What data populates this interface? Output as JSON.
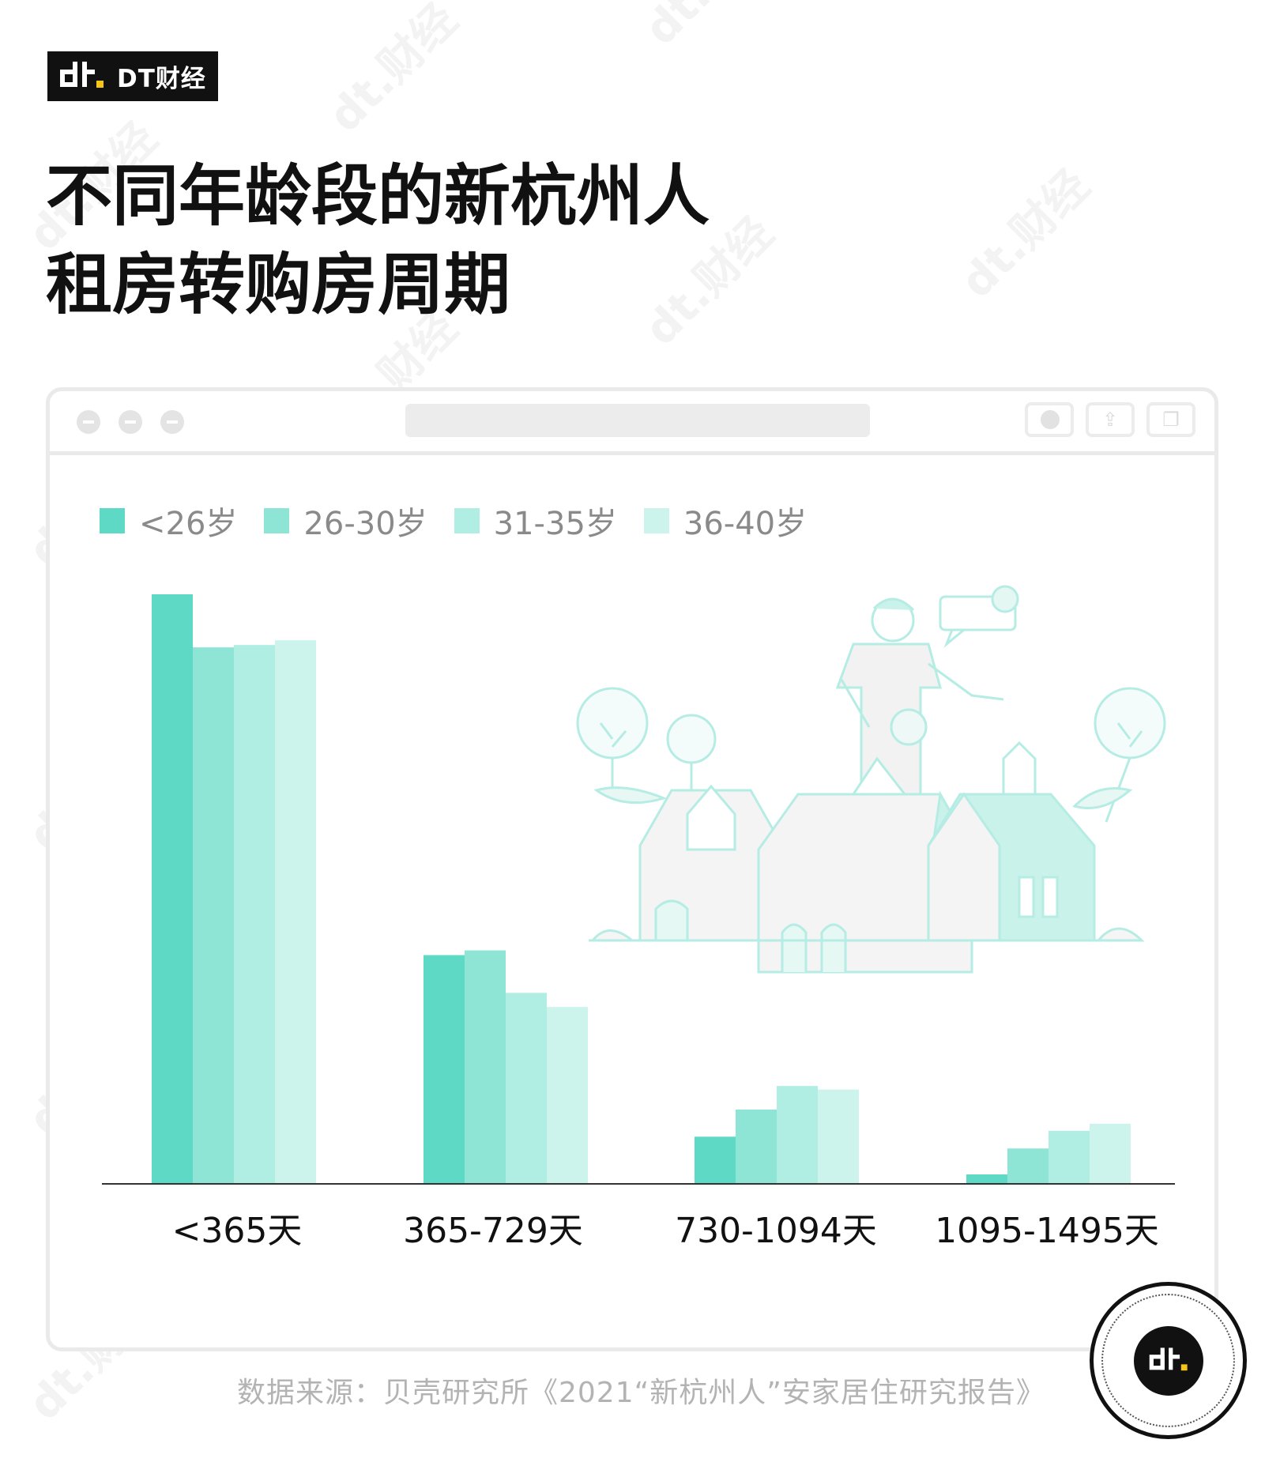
{
  "brand": {
    "name": "DT财经"
  },
  "title": {
    "line1": "不同年龄段的新杭州人",
    "line2": "租房转购房周期"
  },
  "source": "数据来源：贝壳研究所《2021“新杭州人”安家居住研究报告》",
  "chart_data": {
    "type": "bar",
    "title": "不同年龄段的新杭州人租房转购房周期",
    "categories": [
      "<365天",
      "365-729天",
      "730-1094天",
      "1095-1495天"
    ],
    "series": [
      {
        "name": "<26岁",
        "color": "#5dd9c5",
        "values": [
          50.0,
          19.4,
          4.0,
          0.8
        ]
      },
      {
        "name": "26-30岁",
        "color": "#8ee5d6",
        "values": [
          45.5,
          19.8,
          6.3,
          3.0
        ]
      },
      {
        "name": "31-35岁",
        "color": "#b0ede2",
        "values": [
          45.7,
          16.2,
          8.3,
          4.5
        ]
      },
      {
        "name": "36-40岁",
        "color": "#ccf4ec",
        "values": [
          46.1,
          15.0,
          8.0,
          5.1
        ]
      }
    ],
    "ylim": [
      0,
      50
    ],
    "y_axis_shown": false,
    "grid": false,
    "legend_position": "top-left"
  },
  "colors": {
    "accent": "#5dd9c5",
    "watermark": "#f2f2f2",
    "border": "#eaeaea"
  },
  "icons": {
    "window_buttons": [
      "close-icon",
      "minimize-icon",
      "maximize-icon"
    ],
    "window_controls": [
      "record-icon",
      "share-icon",
      "duplicate-icon"
    ]
  }
}
